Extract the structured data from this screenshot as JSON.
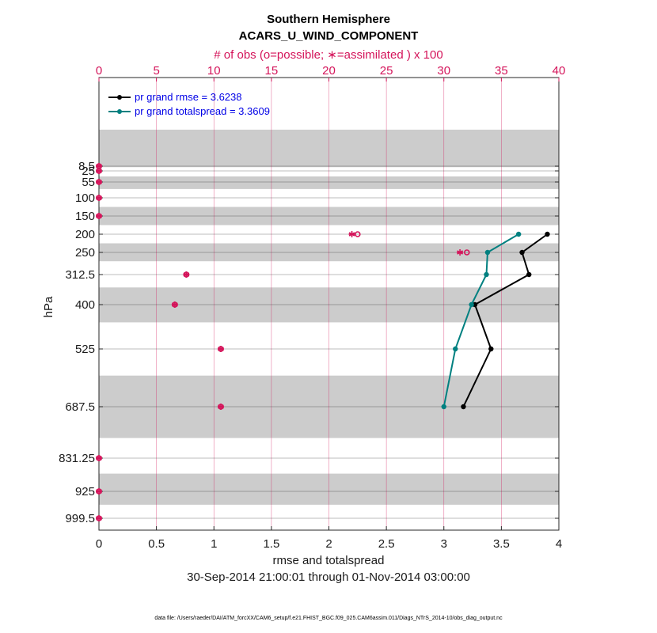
{
  "chart_data": {
    "type": "line",
    "title": "Southern Hemisphere",
    "subtitle": "ACARS_U_WIND_COMPONENT",
    "top_axis_label": "# of obs (o=possible; ∗=assimilated ) x 100",
    "xlabel": "rmse and totalspread",
    "ylabel": "hPa",
    "date_range": "30-Sep-2014 21:00:01 through 01-Nov-2014 03:00:00",
    "footnote": "data file: /Users/raeder/DAI/ATM_forcXX/CAM6_setup/f.e21.FHIST_BGC.f09_025.CAM6assim.011/Diags_NTrS_2014-10/obs_diag_output.nc",
    "xlim": [
      0,
      4
    ],
    "x_ticks": [
      "0",
      "0.5",
      "1",
      "1.5",
      "2",
      "2.5",
      "3",
      "3.5",
      "4"
    ],
    "top_xlim": [
      0,
      40
    ],
    "top_ticks": [
      "0",
      "5",
      "10",
      "15",
      "20",
      "25",
      "30",
      "35",
      "40"
    ],
    "levels": [
      8.5,
      25,
      55,
      100,
      150,
      200,
      250,
      312.5,
      400,
      525,
      687.5,
      831.25,
      925,
      999.5
    ],
    "level_labels": [
      "8.5",
      "25",
      "55",
      "100",
      "150",
      "200",
      "250",
      "312.5",
      "400",
      "525",
      "687.5",
      "831.25",
      "925",
      "999.5"
    ],
    "series": [
      {
        "name": "pr grand rmse = 3.6238",
        "color": "#000000",
        "points": [
          [
            3.9,
            200
          ],
          [
            3.68,
            250
          ],
          [
            3.74,
            312.5
          ],
          [
            3.27,
            400
          ],
          [
            3.41,
            525
          ],
          [
            3.17,
            687.5
          ]
        ]
      },
      {
        "name": "pr grand totalspread = 3.3609",
        "color": "#008080",
        "points": [
          [
            3.65,
            200
          ],
          [
            3.38,
            250
          ],
          [
            3.37,
            312.5
          ],
          [
            3.24,
            400
          ],
          [
            3.1,
            525
          ],
          [
            3.0,
            687.5
          ]
        ]
      }
    ],
    "obs_counts": {
      "color": "#d4145a",
      "levels": [
        8.5,
        25,
        55,
        100,
        150,
        200,
        250,
        312.5,
        400,
        525,
        687.5,
        831.25,
        925,
        999.5
      ],
      "possible": [
        0,
        0,
        0,
        0,
        0,
        22.5,
        32.0,
        7.6,
        6.6,
        10.6,
        10.6,
        0,
        0,
        0
      ],
      "assimilated": [
        0,
        0,
        0,
        0,
        0,
        22.0,
        31.4,
        7.6,
        6.6,
        10.6,
        10.6,
        0,
        0,
        0
      ]
    },
    "legend_position": "top-left"
  }
}
